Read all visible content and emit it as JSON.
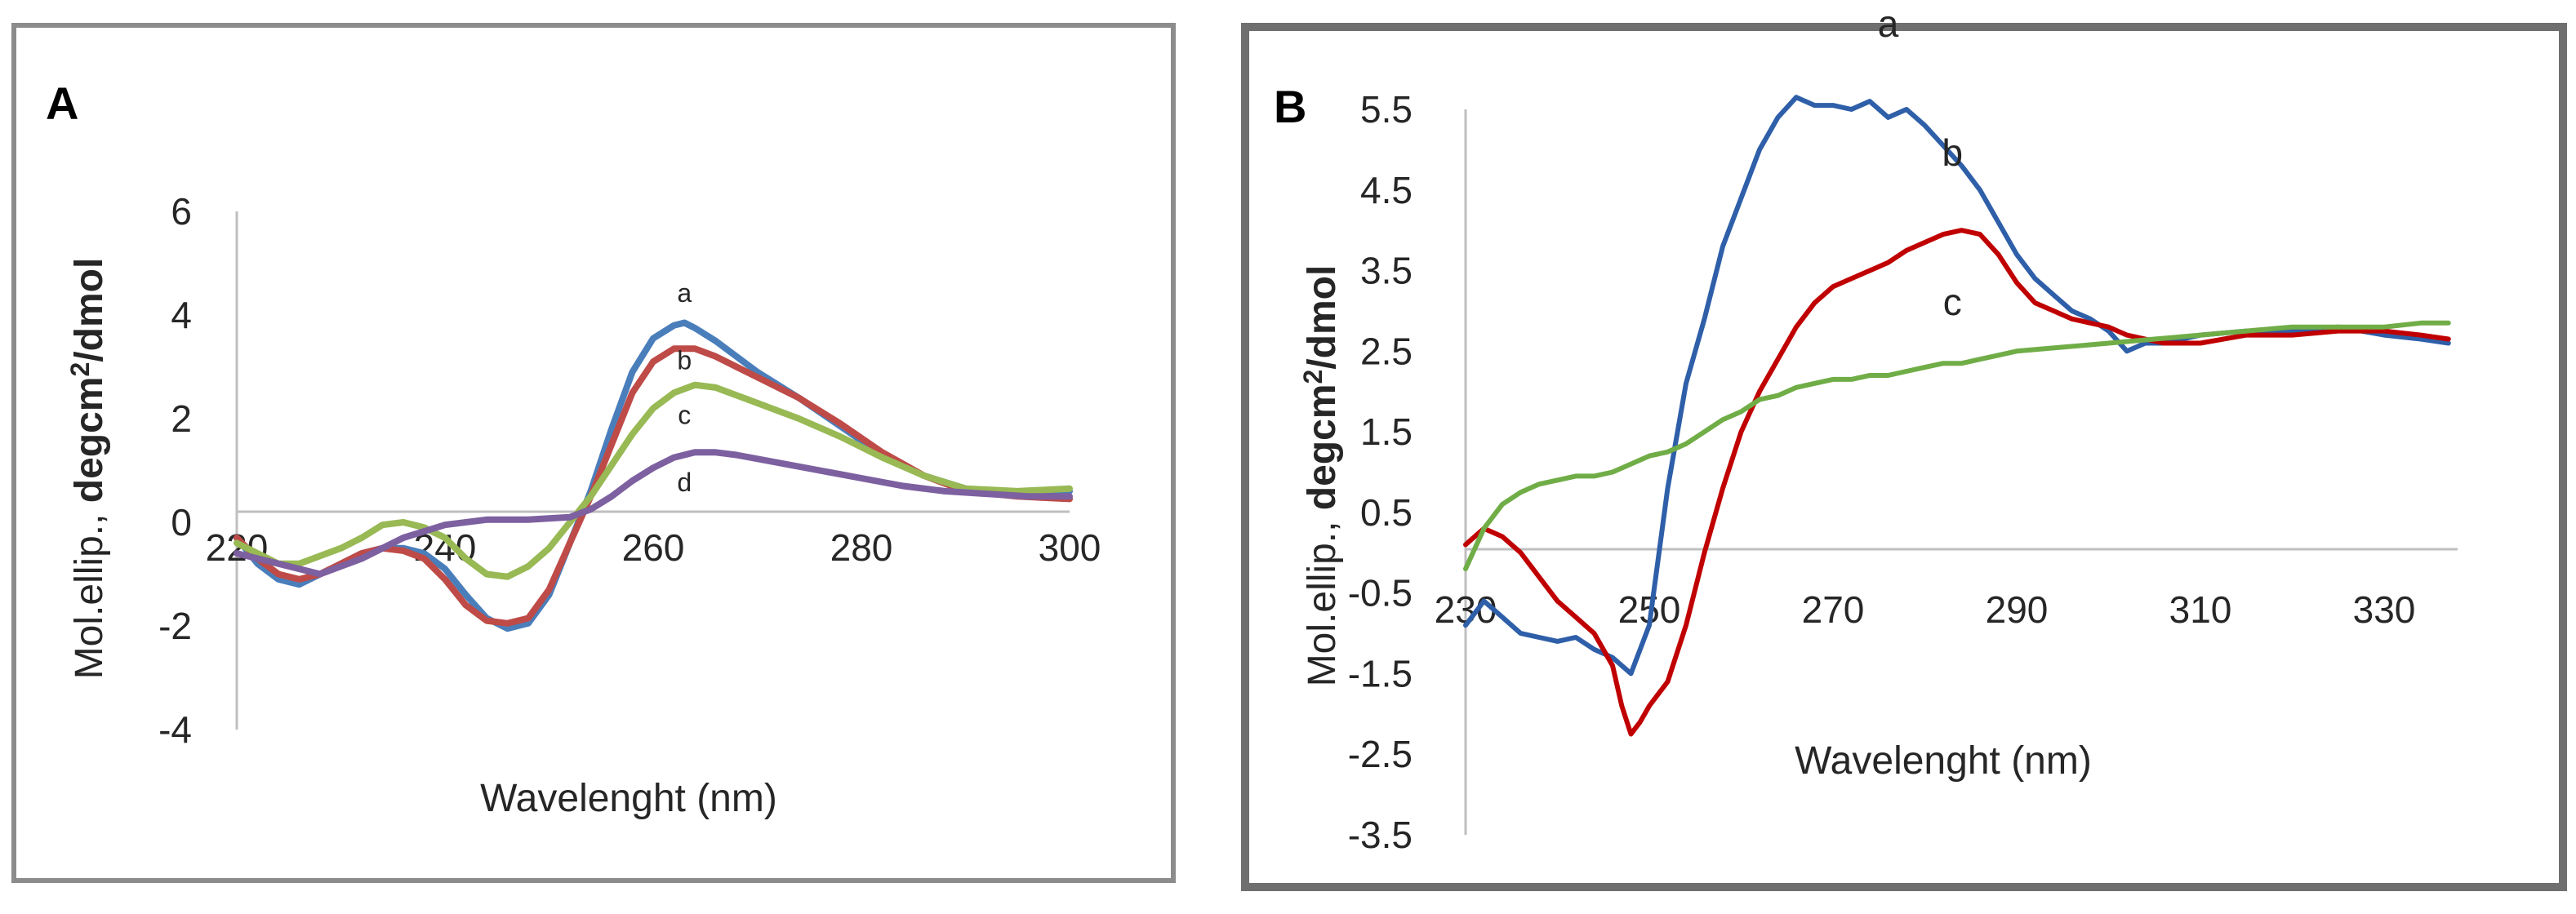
{
  "chart_data": [
    {
      "panel": "A",
      "type": "line",
      "xlabel": "Wavelenght (nm)",
      "ylabel_parts": [
        "Mol.ellip., ",
        "degcm",
        "2",
        "/dmol"
      ],
      "xlim": [
        220,
        300
      ],
      "ylim": [
        -4,
        6
      ],
      "xticks": [
        220,
        240,
        260,
        280,
        300
      ],
      "yticks": [
        -4,
        -2,
        0,
        2,
        4,
        6
      ],
      "grid": false,
      "colors": {
        "a": "#4a7ebb",
        "b": "#be4b48",
        "c": "#98b954",
        "d": "#7d60a0"
      },
      "series": [
        {
          "name": "a",
          "x": [
            220,
            222,
            224,
            226,
            228,
            230,
            232,
            234,
            236,
            238,
            240,
            242,
            244,
            246,
            248,
            250,
            252,
            254,
            256,
            258,
            260,
            262,
            263,
            264,
            266,
            268,
            270,
            274,
            278,
            282,
            286,
            290,
            295,
            300
          ],
          "y": [
            -0.3,
            -0.8,
            -1.1,
            -1.2,
            -1.0,
            -0.8,
            -0.6,
            -0.5,
            -0.5,
            -0.6,
            -0.9,
            -1.4,
            -1.85,
            -2.05,
            -1.95,
            -1.4,
            -0.4,
            0.6,
            1.8,
            2.9,
            3.55,
            3.8,
            3.85,
            3.75,
            3.5,
            3.2,
            2.9,
            2.4,
            1.85,
            1.3,
            0.9,
            0.65,
            0.55,
            0.6
          ]
        },
        {
          "name": "b",
          "x": [
            220,
            222,
            224,
            226,
            228,
            230,
            232,
            234,
            236,
            238,
            240,
            242,
            244,
            246,
            248,
            250,
            252,
            254,
            256,
            258,
            260,
            262,
            264,
            266,
            268,
            270,
            274,
            278,
            282,
            286,
            290,
            295,
            300
          ],
          "y": [
            -0.3,
            -0.7,
            -1.0,
            -1.1,
            -1.0,
            -0.8,
            -0.6,
            -0.5,
            -0.55,
            -0.7,
            -1.1,
            -1.6,
            -1.9,
            -1.95,
            -1.85,
            -1.3,
            -0.4,
            0.5,
            1.5,
            2.5,
            3.1,
            3.35,
            3.35,
            3.2,
            3.0,
            2.8,
            2.4,
            1.9,
            1.35,
            0.9,
            0.6,
            0.5,
            0.45
          ]
        },
        {
          "name": "c",
          "x": [
            220,
            222,
            224,
            226,
            228,
            230,
            232,
            234,
            236,
            238,
            240,
            242,
            244,
            246,
            248,
            250,
            252,
            254,
            256,
            258,
            260,
            262,
            264,
            266,
            268,
            270,
            274,
            278,
            282,
            286,
            290,
            295,
            300
          ],
          "y": [
            -0.4,
            -0.6,
            -0.8,
            -0.8,
            -0.65,
            -0.5,
            -0.3,
            -0.05,
            0.0,
            -0.1,
            -0.3,
            -0.7,
            -1.0,
            -1.05,
            -0.85,
            -0.5,
            0.0,
            0.5,
            1.1,
            1.7,
            2.2,
            2.5,
            2.65,
            2.6,
            2.45,
            2.3,
            2.0,
            1.65,
            1.25,
            0.9,
            0.65,
            0.6,
            0.65
          ]
        },
        {
          "name": "d",
          "x": [
            220,
            224,
            228,
            232,
            236,
            240,
            244,
            248,
            252,
            254,
            256,
            258,
            260,
            262,
            264,
            266,
            268,
            272,
            276,
            280,
            284,
            288,
            292,
            296,
            300
          ],
          "y": [
            -0.6,
            -0.8,
            -1.0,
            -0.7,
            -0.3,
            -0.05,
            0.05,
            0.05,
            0.1,
            0.25,
            0.5,
            0.8,
            1.05,
            1.25,
            1.35,
            1.35,
            1.3,
            1.15,
            1.0,
            0.85,
            0.7,
            0.6,
            0.55,
            0.5,
            0.5
          ]
        }
      ],
      "series_labels": [
        {
          "name": "a",
          "x": 263,
          "y": 4.25
        },
        {
          "name": "b",
          "x": 263,
          "y": 2.95
        },
        {
          "name": "c",
          "x": 263,
          "y": 1.9
        },
        {
          "name": "d",
          "x": 263,
          "y": 0.6
        }
      ]
    },
    {
      "panel": "B",
      "type": "line",
      "xlabel": "Wavelenght (nm)",
      "ylabel_parts": [
        "Mol.ellip.,  ",
        "degcm",
        "2",
        "/dmol"
      ],
      "xlim": [
        230,
        338
      ],
      "ylim": [
        -3.5,
        5.5
      ],
      "xticks": [
        230,
        250,
        270,
        290,
        310,
        330
      ],
      "yticks": [
        -3.5,
        -2.5,
        -1.5,
        -0.5,
        0.5,
        1.5,
        2.5,
        3.5,
        4.5,
        5.5
      ],
      "grid": false,
      "colors": {
        "a": "#2e5fa8",
        "b": "#c00000",
        "c": "#70ad47"
      },
      "series": [
        {
          "name": "a",
          "x": [
            230,
            232,
            234,
            236,
            238,
            240,
            242,
            244,
            246,
            248,
            250,
            252,
            254,
            256,
            258,
            260,
            262,
            264,
            266,
            268,
            270,
            272,
            274,
            276,
            278,
            280,
            282,
            284,
            286,
            288,
            290,
            292,
            294,
            296,
            298,
            300,
            302,
            304,
            306,
            310,
            315,
            320,
            325,
            330,
            334,
            337
          ],
          "y": [
            -0.9,
            -0.6,
            -0.8,
            -1.0,
            -1.05,
            -1.1,
            -1.05,
            -1.2,
            -1.3,
            -1.5,
            -0.9,
            0.8,
            2.1,
            2.9,
            3.8,
            4.4,
            5.0,
            5.4,
            5.65,
            5.55,
            5.55,
            5.5,
            5.6,
            5.4,
            5.5,
            5.3,
            5.05,
            4.8,
            4.5,
            4.1,
            3.7,
            3.4,
            3.2,
            3.0,
            2.9,
            2.75,
            2.5,
            2.6,
            2.6,
            2.7,
            2.75,
            2.75,
            2.8,
            2.7,
            2.65,
            2.6
          ]
        },
        {
          "name": "b",
          "x": [
            230,
            232,
            234,
            236,
            238,
            240,
            242,
            244,
            246,
            247,
            248,
            249,
            250,
            252,
            254,
            256,
            258,
            260,
            262,
            264,
            266,
            268,
            270,
            272,
            274,
            276,
            278,
            280,
            282,
            284,
            286,
            288,
            290,
            292,
            294,
            296,
            298,
            300,
            302,
            304,
            306,
            310,
            315,
            320,
            325,
            330,
            334,
            337
          ],
          "y": [
            0.1,
            0.3,
            0.2,
            0.0,
            -0.3,
            -0.6,
            -0.8,
            -1.0,
            -1.4,
            -1.9,
            -2.25,
            -2.1,
            -1.9,
            -1.6,
            -0.9,
            0.0,
            0.8,
            1.5,
            2.0,
            2.4,
            2.8,
            3.1,
            3.3,
            3.4,
            3.5,
            3.6,
            3.75,
            3.85,
            3.95,
            4.0,
            3.95,
            3.7,
            3.35,
            3.1,
            3.0,
            2.9,
            2.85,
            2.8,
            2.7,
            2.65,
            2.6,
            2.6,
            2.7,
            2.7,
            2.75,
            2.75,
            2.7,
            2.65
          ]
        },
        {
          "name": "c",
          "x": [
            230,
            232,
            234,
            236,
            238,
            240,
            242,
            244,
            246,
            248,
            250,
            252,
            254,
            256,
            258,
            260,
            262,
            264,
            266,
            268,
            270,
            272,
            274,
            276,
            278,
            280,
            282,
            284,
            286,
            288,
            290,
            295,
            300,
            305,
            310,
            315,
            320,
            325,
            330,
            334,
            337
          ],
          "y": [
            -0.2,
            0.3,
            0.6,
            0.75,
            0.85,
            0.9,
            0.95,
            0.95,
            1.0,
            1.1,
            1.2,
            1.25,
            1.35,
            1.5,
            1.65,
            1.75,
            1.9,
            1.95,
            2.05,
            2.1,
            2.15,
            2.15,
            2.2,
            2.2,
            2.25,
            2.3,
            2.35,
            2.35,
            2.4,
            2.45,
            2.5,
            2.55,
            2.6,
            2.65,
            2.7,
            2.75,
            2.8,
            2.8,
            2.8,
            2.85,
            2.85
          ]
        }
      ],
      "series_labels": [
        {
          "name": "a",
          "x": 276,
          "y": 6.4
        },
        {
          "name": "b",
          "x": 283,
          "y": 4.8
        },
        {
          "name": "c",
          "x": 283,
          "y": 2.95
        }
      ]
    }
  ]
}
